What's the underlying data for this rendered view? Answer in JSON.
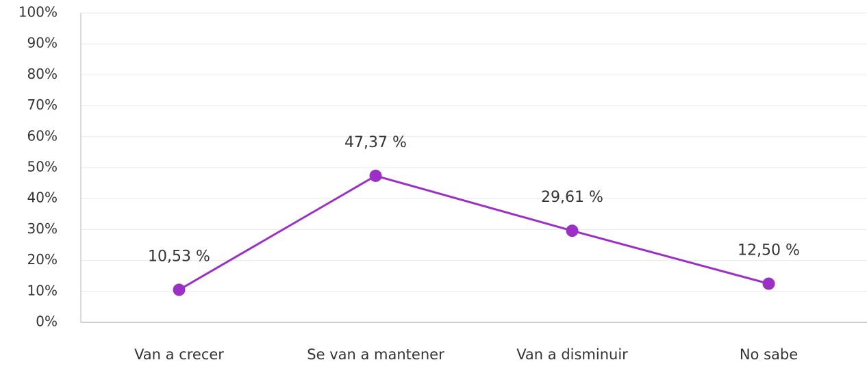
{
  "chart_data": {
    "type": "line",
    "categories": [
      "Van a crecer",
      "Se van a mantener",
      "Van a disminuir",
      "No sabe"
    ],
    "series": [
      {
        "name": null,
        "color": "#9b2fc6",
        "values": [
          10.53,
          47.37,
          29.61,
          12.5
        ],
        "value_labels": [
          "10,53 %",
          "47,37 %",
          "29,61 %",
          "12,50 %"
        ]
      }
    ],
    "ylim": [
      0,
      100
    ],
    "yticks": [
      {
        "value": 0,
        "label": "0%"
      },
      {
        "value": 10,
        "label": "10%"
      },
      {
        "value": 20,
        "label": "20%"
      },
      {
        "value": 30,
        "label": "30%"
      },
      {
        "value": 40,
        "label": "40%"
      },
      {
        "value": 50,
        "label": "50%"
      },
      {
        "value": 60,
        "label": "60%"
      },
      {
        "value": 70,
        "label": "70%"
      },
      {
        "value": 80,
        "label": "80%"
      },
      {
        "value": 90,
        "label": "90%"
      },
      {
        "value": 100,
        "label": "100%"
      }
    ],
    "grid": true
  }
}
